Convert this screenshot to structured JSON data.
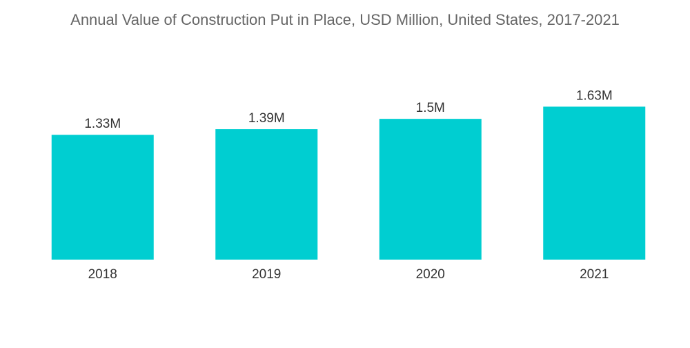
{
  "chart_data": {
    "type": "bar",
    "title": "Annual Value of Construction Put in Place, USD Million, United States, 2017-2021",
    "categories": [
      "2018",
      "2019",
      "2020",
      "2021"
    ],
    "values": [
      1.33,
      1.39,
      1.5,
      1.63
    ],
    "value_labels": [
      "1.33M",
      "1.39M",
      "1.5M",
      "1.63M"
    ],
    "xlabel": "",
    "ylabel": "",
    "ylim": [
      0,
      1.81
    ],
    "grid": false,
    "legend": "none",
    "bar_color": "#00CED1"
  }
}
